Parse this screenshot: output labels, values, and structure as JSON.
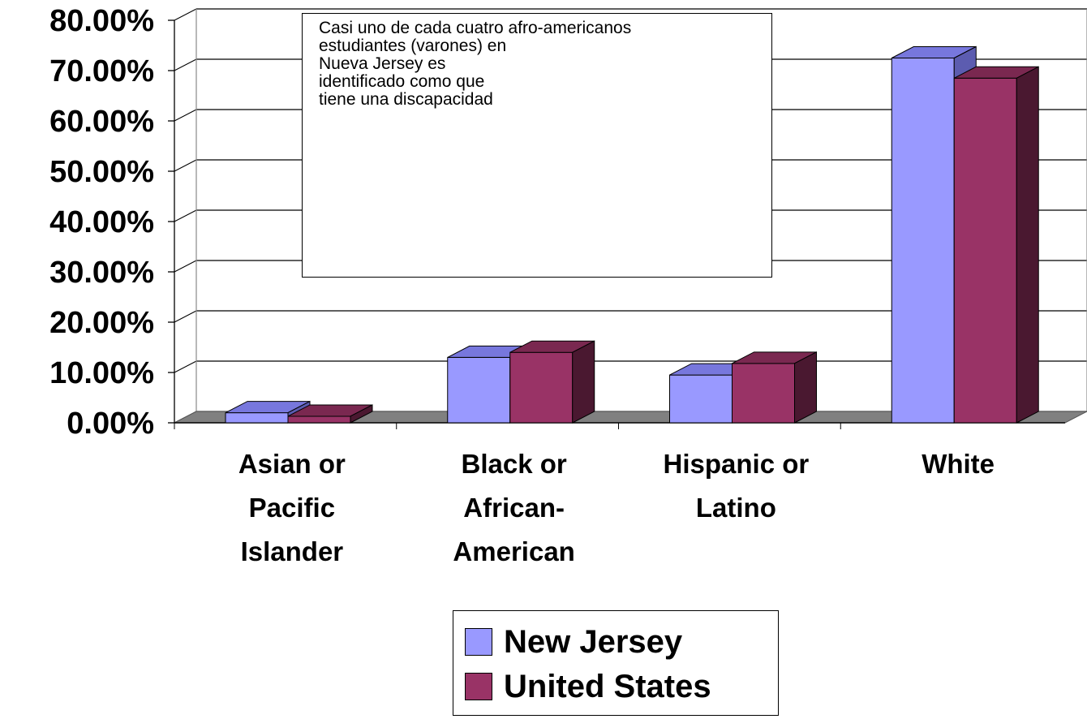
{
  "chart_data": {
    "type": "bar",
    "categories": [
      [
        "Asian or",
        "Pacific",
        "Islander"
      ],
      [
        "Black or",
        "African-",
        "American"
      ],
      [
        "Hispanic or",
        "Latino"
      ],
      [
        "White"
      ]
    ],
    "series": [
      {
        "name": "New Jersey",
        "values": [
          2.0,
          13.0,
          9.5,
          72.5
        ],
        "color": "#9999ff",
        "top_color": "#7777dd",
        "side_color": "#5c5cb0"
      },
      {
        "name": "United States",
        "values": [
          1.3,
          14.0,
          11.8,
          68.5
        ],
        "color": "#993366",
        "top_color": "#7a2850",
        "side_color": "#4a1830"
      }
    ],
    "yticks": [
      "0.00%",
      "10.00%",
      "20.00%",
      "30.00%",
      "40.00%",
      "50.00%",
      "60.00%",
      "70.00%",
      "80.00%"
    ],
    "ylim": [
      0,
      80
    ],
    "grid": true,
    "legend_position": "bottom",
    "floor_color": "#808080",
    "annotation": [
      "Casi uno de cada cuatro afro-americanos",
      "estudiantes (varones) en",
      "Nueva Jersey es",
      "identificado como que",
      "tiene una discapacidad"
    ]
  },
  "legend": {
    "items": [
      {
        "label": "New Jersey",
        "color": "#9999ff"
      },
      {
        "label": "United States",
        "color": "#993366"
      }
    ]
  }
}
